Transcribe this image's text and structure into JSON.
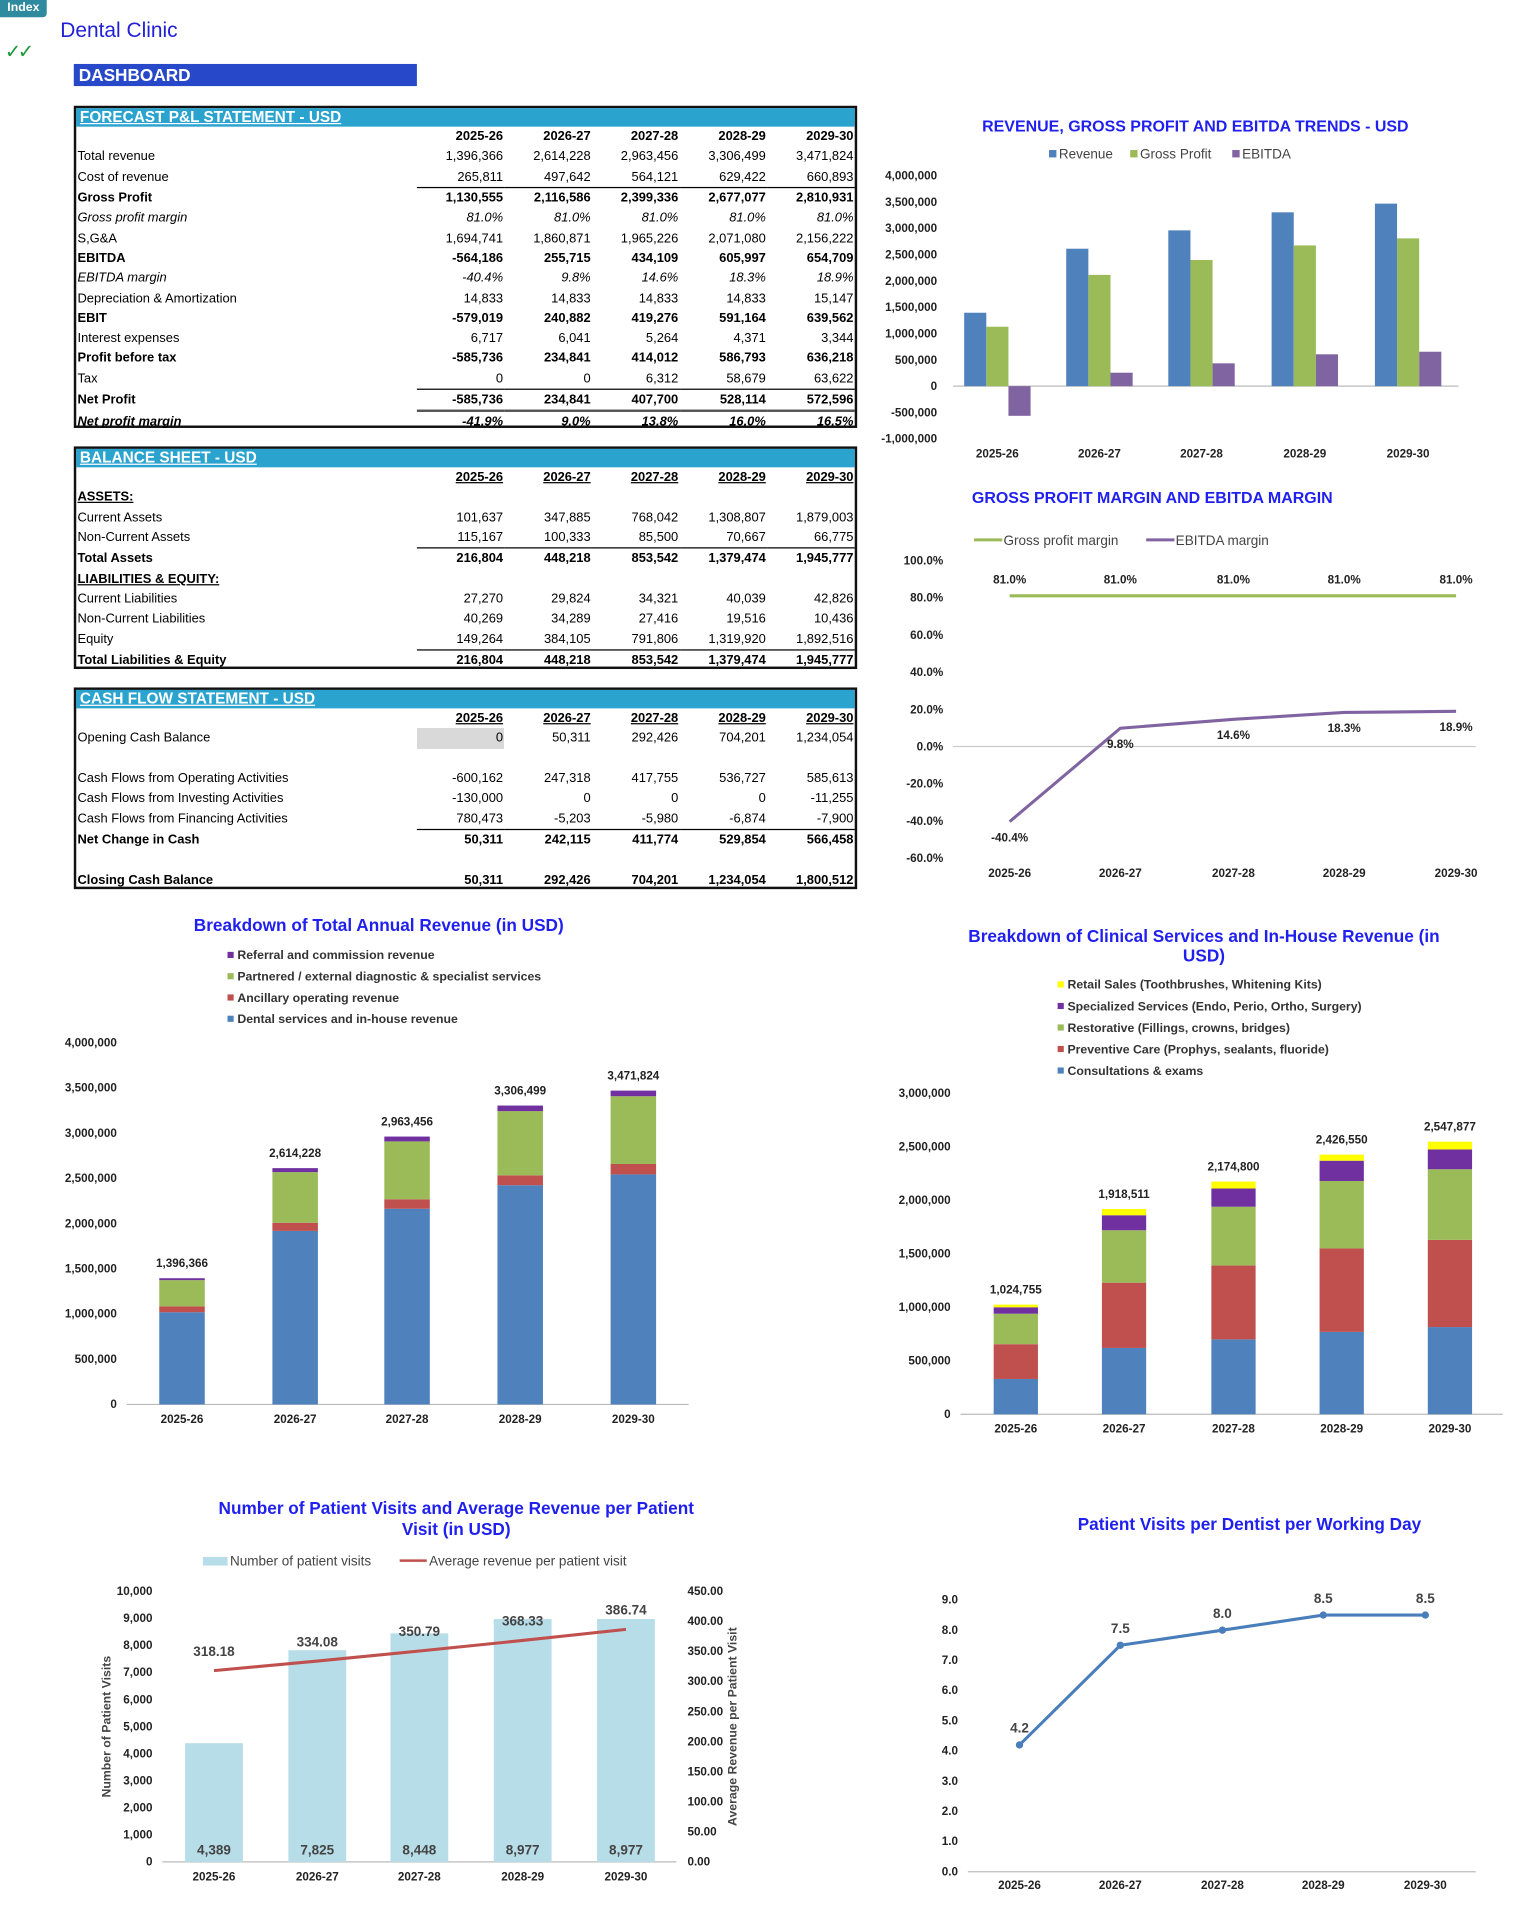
{
  "header": {
    "index_tab": "Index",
    "app_title": "Dental Clinic",
    "checkmarks": "✓✓",
    "dashboard_label": "DASHBOARD"
  },
  "pnl": {
    "title": "FORECAST P&L STATEMENT - USD",
    "years": [
      "2025-26",
      "2026-27",
      "2027-28",
      "2028-29",
      "2029-30"
    ],
    "rows": [
      {
        "label": "Total revenue",
        "values": [
          "1,396,366",
          "2,614,228",
          "2,963,456",
          "3,306,499",
          "3,471,824"
        ]
      },
      {
        "label": "Cost of revenue",
        "values": [
          "265,811",
          "497,642",
          "564,121",
          "629,422",
          "660,893"
        ]
      },
      {
        "label": "Gross Profit",
        "values": [
          "1,130,555",
          "2,116,586",
          "2,399,336",
          "2,677,077",
          "2,810,931"
        ]
      },
      {
        "label": "Gross profit margin",
        "values": [
          "81.0%",
          "81.0%",
          "81.0%",
          "81.0%",
          "81.0%"
        ]
      },
      {
        "label": "S,G&A",
        "values": [
          "1,694,741",
          "1,860,871",
          "1,965,226",
          "2,071,080",
          "2,156,222"
        ]
      },
      {
        "label": "EBITDA",
        "values": [
          "-564,186",
          "255,715",
          "434,109",
          "605,997",
          "654,709"
        ]
      },
      {
        "label": "EBITDA margin",
        "values": [
          "-40.4%",
          "9.8%",
          "14.6%",
          "18.3%",
          "18.9%"
        ]
      },
      {
        "label": "Depreciation & Amortization",
        "values": [
          "14,833",
          "14,833",
          "14,833",
          "14,833",
          "15,147"
        ]
      },
      {
        "label": "EBIT",
        "values": [
          "-579,019",
          "240,882",
          "419,276",
          "591,164",
          "639,562"
        ]
      },
      {
        "label": "Interest expenses",
        "values": [
          "6,717",
          "6,041",
          "5,264",
          "4,371",
          "3,344"
        ]
      },
      {
        "label": "Profit before tax",
        "values": [
          "-585,736",
          "234,841",
          "414,012",
          "586,793",
          "636,218"
        ]
      },
      {
        "label": "Tax",
        "values": [
          "0",
          "0",
          "6,312",
          "58,679",
          "63,622"
        ]
      },
      {
        "label": "Net Profit",
        "values": [
          "-585,736",
          "234,841",
          "407,700",
          "528,114",
          "572,596"
        ]
      },
      {
        "label": "Net profit margin",
        "values": [
          "-41.9%",
          "9.0%",
          "13.8%",
          "16.0%",
          "16.5%"
        ]
      }
    ]
  },
  "balance": {
    "title": "BALANCE SHEET - USD",
    "years": [
      "2025-26",
      "2026-27",
      "2027-28",
      "2028-29",
      "2029-30"
    ],
    "rows": [
      {
        "label": "ASSETS:",
        "values": [
          "",
          "",
          "",
          "",
          ""
        ]
      },
      {
        "label": "Current Assets",
        "values": [
          "101,637",
          "347,885",
          "768,042",
          "1,308,807",
          "1,879,003"
        ]
      },
      {
        "label": "Non-Current Assets",
        "values": [
          "115,167",
          "100,333",
          "85,500",
          "70,667",
          "66,775"
        ]
      },
      {
        "label": "Total Assets",
        "values": [
          "216,804",
          "448,218",
          "853,542",
          "1,379,474",
          "1,945,777"
        ]
      },
      {
        "label": "LIABILITIES & EQUITY:",
        "values": [
          "",
          "",
          "",
          "",
          ""
        ]
      },
      {
        "label": "Current Liabilities",
        "values": [
          "27,270",
          "29,824",
          "34,321",
          "40,039",
          "42,826"
        ]
      },
      {
        "label": "Non-Current Liabilities",
        "values": [
          "40,269",
          "34,289",
          "27,416",
          "19,516",
          "10,436"
        ]
      },
      {
        "label": "Equity",
        "values": [
          "149,264",
          "384,105",
          "791,806",
          "1,319,920",
          "1,892,516"
        ]
      },
      {
        "label": "Total Liabilities & Equity",
        "values": [
          "216,804",
          "448,218",
          "853,542",
          "1,379,474",
          "1,945,777"
        ]
      }
    ]
  },
  "cashflow": {
    "title": "CASH FLOW STATEMENT - USD",
    "years": [
      "2025-26",
      "2026-27",
      "2027-28",
      "2028-29",
      "2029-30"
    ],
    "rows": [
      {
        "label": "Opening Cash Balance",
        "values": [
          "0",
          "50,311",
          "292,426",
          "704,201",
          "1,234,054"
        ]
      },
      {
        "label": "",
        "values": [
          "",
          "",
          "",
          "",
          ""
        ]
      },
      {
        "label": "Cash Flows from Operating Activities",
        "values": [
          "-600,162",
          "247,318",
          "417,755",
          "536,727",
          "585,613"
        ]
      },
      {
        "label": "Cash Flows from Investing Activities",
        "values": [
          "-130,000",
          "0",
          "0",
          "0",
          "-11,255"
        ]
      },
      {
        "label": "Cash Flows from Financing Activities",
        "values": [
          "780,473",
          "-5,203",
          "-5,980",
          "-6,874",
          "-7,900"
        ]
      },
      {
        "label": "Net Change in Cash",
        "values": [
          "50,311",
          "242,115",
          "411,774",
          "529,854",
          "566,458"
        ]
      },
      {
        "label": "",
        "values": [
          "",
          "",
          "",
          "",
          ""
        ]
      },
      {
        "label": "Closing Cash Balance",
        "values": [
          "50,311",
          "292,426",
          "704,201",
          "1,234,054",
          "1,800,512"
        ]
      }
    ]
  },
  "colors": {
    "blue": "#4f81bd",
    "green": "#9bbb59",
    "purple": "#8064a2",
    "red": "#c0504d",
    "dark_purple": "#7030a0",
    "yellow": "#ffff00",
    "light_blue": "#b7dde8",
    "title_blue": "#1f1ff0",
    "header_teal": "#2ba3cf"
  },
  "chart_data": [
    {
      "type": "bar",
      "title": "REVENUE, GROSS PROFIT AND EBITDA TRENDS - USD",
      "categories": [
        "2025-26",
        "2026-27",
        "2027-28",
        "2028-29",
        "2029-30"
      ],
      "series": [
        {
          "name": "Revenue",
          "values": [
            1396366,
            2614228,
            2963456,
            3306499,
            3471824
          ]
        },
        {
          "name": "Gross Profit",
          "values": [
            1130555,
            2116586,
            2399336,
            2677077,
            2810931
          ]
        },
        {
          "name": "EBITDA",
          "values": [
            -564186,
            255715,
            434109,
            605997,
            654709
          ]
        }
      ],
      "y_ticks": [
        "4,000,000",
        "3,500,000",
        "3,000,000",
        "2,500,000",
        "2,000,000",
        "1,500,000",
        "1,000,000",
        "500,000",
        "0",
        "-500,000",
        "-1,000,000"
      ],
      "ylim": [
        -1000000,
        4000000
      ],
      "legend": "top"
    },
    {
      "type": "line",
      "title": "GROSS PROFIT MARGIN AND EBITDA MARGIN",
      "categories": [
        "2025-26",
        "2026-27",
        "2027-28",
        "2028-29",
        "2029-30"
      ],
      "series": [
        {
          "name": "Gross profit margin",
          "values": [
            81.0,
            81.0,
            81.0,
            81.0,
            81.0
          ],
          "labels": [
            "81.0%",
            "81.0%",
            "81.0%",
            "81.0%",
            "81.0%"
          ]
        },
        {
          "name": "EBITDA margin",
          "values": [
            -40.4,
            9.8,
            14.6,
            18.3,
            18.9
          ],
          "labels": [
            "-40.4%",
            "9.8%",
            "14.6%",
            "18.3%",
            "18.9%"
          ]
        }
      ],
      "y_ticks": [
        "100.0%",
        "80.0%",
        "60.0%",
        "40.0%",
        "20.0%",
        "0.0%",
        "-20.0%",
        "-40.0%",
        "-60.0%"
      ],
      "ylim": [
        -60,
        100
      ],
      "legend": "top"
    },
    {
      "type": "bar",
      "stacked": true,
      "title": "Breakdown of Total Annual Revenue (in USD)",
      "categories": [
        "2025-26",
        "2026-27",
        "2027-28",
        "2028-29",
        "2029-30"
      ],
      "series": [
        {
          "name": "Dental services and in-house revenue",
          "values": [
            1020000,
            1920000,
            2165000,
            2425000,
            2545000
          ]
        },
        {
          "name": "Ancillary operating revenue",
          "values": [
            65000,
            90000,
            105000,
            110000,
            115000
          ]
        },
        {
          "name": "Partnered / external diagnostic & specialist services",
          "values": [
            290000,
            560000,
            640000,
            710000,
            750000
          ]
        },
        {
          "name": "Referral and commission revenue",
          "values": [
            21366,
            44228,
            53456,
            61499,
            61824
          ]
        }
      ],
      "total_labels": [
        "1,396,366",
        "2,614,228",
        "2,963,456",
        "3,306,499",
        "3,471,824"
      ],
      "y_ticks": [
        "4,000,000",
        "3,500,000",
        "3,000,000",
        "2,500,000",
        "2,000,000",
        "1,500,000",
        "1,000,000",
        "500,000",
        "0"
      ],
      "ylim": [
        0,
        4000000
      ],
      "legend": "top"
    },
    {
      "type": "bar",
      "stacked": true,
      "title": [
        "Breakdown of Clinical Services and In-House Revenue (in",
        "USD)"
      ],
      "categories": [
        "2025-26",
        "2026-27",
        "2027-28",
        "2028-29",
        "2029-30"
      ],
      "series": [
        {
          "name": "Consultations & exams",
          "values": [
            330000,
            620000,
            700000,
            770000,
            815000
          ]
        },
        {
          "name": "Preventive Care (Prophys, sealants, fluoride)",
          "values": [
            325000,
            610000,
            690000,
            780000,
            815000
          ]
        },
        {
          "name": "Restorative (Fillings, crowns, bridges)",
          "values": [
            285000,
            490000,
            550000,
            630000,
            660000
          ]
        },
        {
          "name": "Specialized Services (Endo, Perio, Ortho, Surgery)",
          "values": [
            60000,
            140000,
            170000,
            190000,
            185000
          ]
        },
        {
          "name": "Retail Sales (Toothbrushes, Whitening Kits)",
          "values": [
            24755,
            58511,
            64800,
            56550,
            72877
          ]
        }
      ],
      "total_labels": [
        "1,024,755",
        "1,918,511",
        "2,174,800",
        "2,426,550",
        "2,547,877"
      ],
      "y_ticks": [
        "3,000,000",
        "2,500,000",
        "2,000,000",
        "1,500,000",
        "1,000,000",
        "500,000",
        "0"
      ],
      "ylim": [
        0,
        3000000
      ],
      "legend": "top"
    },
    {
      "type": "bar+line",
      "title": [
        "Number of Patient Visits and  Average Revenue per Patient",
        "Visit (in USD)"
      ],
      "categories": [
        "2025-26",
        "2026-27",
        "2027-28",
        "2028-29",
        "2029-30"
      ],
      "series": [
        {
          "name": "Number of patient visits",
          "values": [
            4389,
            7825,
            8448,
            8977,
            8977
          ],
          "labels": [
            "4,389",
            "7,825",
            "8,448",
            "8,977",
            "8,977"
          ]
        },
        {
          "name": "Average revenue per patient visit",
          "values": [
            318.18,
            334.08,
            350.79,
            368.33,
            386.74
          ],
          "labels": [
            "318.18",
            "334.08",
            "350.79",
            "368.33",
            "386.74"
          ]
        }
      ],
      "ylabel": "Number of Patient Visits",
      "y2label": "Average Revenue per Patient Visit",
      "y_ticks": [
        "10,000",
        "9,000",
        "8,000",
        "7,000",
        "6,000",
        "5,000",
        "4,000",
        "3,000",
        "2,000",
        "1,000",
        "0"
      ],
      "y2_ticks": [
        "450.00",
        "400.00",
        "350.00",
        "300.00",
        "250.00",
        "200.00",
        "150.00",
        "100.00",
        "50.00",
        "0.00"
      ],
      "ylim": [
        0,
        10000
      ],
      "y2lim": [
        0,
        450
      ],
      "legend": "top"
    },
    {
      "type": "line",
      "title": "Patient Visits per Dentist per Working Day",
      "categories": [
        "2025-26",
        "2026-27",
        "2027-28",
        "2028-29",
        "2029-30"
      ],
      "series": [
        {
          "name": "Patient visits per dentist per day",
          "values": [
            4.2,
            7.5,
            8.0,
            8.5,
            8.5
          ],
          "labels": [
            "4.2",
            "7.5",
            "8.0",
            "8.5",
            "8.5"
          ]
        }
      ],
      "y_ticks": [
        "9.0",
        "8.0",
        "7.0",
        "6.0",
        "5.0",
        "4.0",
        "3.0",
        "2.0",
        "1.0",
        "0.0"
      ],
      "ylim": [
        0,
        9
      ]
    }
  ]
}
